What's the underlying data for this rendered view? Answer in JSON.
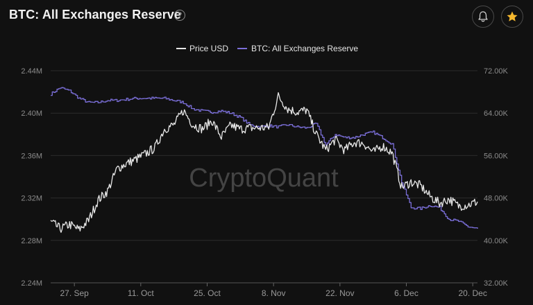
{
  "header": {
    "title": "BTC: All Exchanges Reserve",
    "help_glyph": "?",
    "icons": [
      "help-icon",
      "bell-icon",
      "star-icon"
    ]
  },
  "colors": {
    "background": "#111111",
    "price": "#e8e8e8",
    "reserve": "#7b6fd9",
    "star": "#f5b82e",
    "grid": "#2c2c2c",
    "watermark": "#555555"
  },
  "watermark": "CryptoQuant",
  "chart_data": {
    "type": "line",
    "legend_position": "top-center",
    "legend": [
      {
        "name": "Price USD",
        "color": "#e8e8e8"
      },
      {
        "name": "BTC: All Exchanges Reserve",
        "color": "#7b6fd9"
      }
    ],
    "x_range": [
      "2021-09-22",
      "2021-12-21"
    ],
    "x_ticks": [
      {
        "date": "2021-09-27",
        "label": "27. Sep"
      },
      {
        "date": "2021-10-11",
        "label": "11. Oct"
      },
      {
        "date": "2021-10-25",
        "label": "25. Oct"
      },
      {
        "date": "2021-11-08",
        "label": "8. Nov"
      },
      {
        "date": "2021-11-22",
        "label": "22. Nov"
      },
      {
        "date": "2021-12-06",
        "label": "6. Dec"
      },
      {
        "date": "2021-12-20",
        "label": "20. Dec"
      }
    ],
    "y_left": {
      "ylim": [
        2.24,
        2.44
      ],
      "ticks": [
        2.24,
        2.28,
        2.32,
        2.36,
        2.4,
        2.44
      ],
      "tick_labels": [
        "2.24M",
        "2.28M",
        "2.32M",
        "2.36M",
        "2.40M",
        "2.44M"
      ]
    },
    "y_right": {
      "ylim": [
        32000,
        72000
      ],
      "ticks": [
        32000,
        40000,
        48000,
        56000,
        64000,
        72000
      ],
      "tick_labels": [
        "32.00K",
        "40.00K",
        "48.00K",
        "56.00K",
        "64.00K",
        "72.00K"
      ]
    },
    "grid": true,
    "series": [
      {
        "name": "Price USD",
        "axis": "right",
        "x": [
          "2021-09-22",
          "2021-09-24",
          "2021-09-26",
          "2021-09-28",
          "2021-09-30",
          "2021-10-02",
          "2021-10-04",
          "2021-10-06",
          "2021-10-08",
          "2021-10-10",
          "2021-10-12",
          "2021-10-14",
          "2021-10-16",
          "2021-10-18",
          "2021-10-20",
          "2021-10-22",
          "2021-10-24",
          "2021-10-26",
          "2021-10-28",
          "2021-10-30",
          "2021-11-01",
          "2021-11-03",
          "2021-11-05",
          "2021-11-07",
          "2021-11-09",
          "2021-11-11",
          "2021-11-13",
          "2021-11-15",
          "2021-11-17",
          "2021-11-19",
          "2021-11-21",
          "2021-11-23",
          "2021-11-25",
          "2021-11-27",
          "2021-11-29",
          "2021-12-01",
          "2021-12-03",
          "2021-12-05",
          "2021-12-07",
          "2021-12-09",
          "2021-12-11",
          "2021-12-13",
          "2021-12-15",
          "2021-12-17",
          "2021-12-19",
          "2021-12-21"
        ],
        "values": [
          43500,
          42200,
          43000,
          42000,
          43800,
          47600,
          49300,
          53500,
          54500,
          55300,
          56300,
          57500,
          61000,
          61800,
          64500,
          61800,
          61000,
          62600,
          59500,
          61700,
          61000,
          61200,
          61200,
          61300,
          67200,
          64800,
          64200,
          64600,
          60000,
          57000,
          59000,
          57000,
          58500,
          58300,
          56600,
          57800,
          56500,
          50000,
          51000,
          50300,
          48300,
          47000,
          47800,
          46500,
          46700,
          47300
        ]
      },
      {
        "name": "BTC: All Exchanges Reserve",
        "axis": "left",
        "x": [
          "2021-09-22",
          "2021-09-24",
          "2021-09-26",
          "2021-09-28",
          "2021-09-30",
          "2021-10-02",
          "2021-10-04",
          "2021-10-06",
          "2021-10-08",
          "2021-10-10",
          "2021-10-12",
          "2021-10-14",
          "2021-10-16",
          "2021-10-18",
          "2021-10-20",
          "2021-10-22",
          "2021-10-24",
          "2021-10-26",
          "2021-10-28",
          "2021-10-30",
          "2021-11-01",
          "2021-11-03",
          "2021-11-05",
          "2021-11-07",
          "2021-11-09",
          "2021-11-11",
          "2021-11-13",
          "2021-11-15",
          "2021-11-17",
          "2021-11-19",
          "2021-11-21",
          "2021-11-23",
          "2021-11-25",
          "2021-11-27",
          "2021-11-29",
          "2021-12-01",
          "2021-12-03",
          "2021-12-05",
          "2021-12-07",
          "2021-12-09",
          "2021-12-11",
          "2021-12-13",
          "2021-12-15",
          "2021-12-17",
          "2021-12-19",
          "2021-12-21"
        ],
        "values": [
          2.418,
          2.424,
          2.421,
          2.414,
          2.41,
          2.41,
          2.412,
          2.412,
          2.413,
          2.414,
          2.414,
          2.414,
          2.414,
          2.412,
          2.41,
          2.404,
          2.402,
          2.401,
          2.402,
          2.4,
          2.396,
          2.389,
          2.387,
          2.388,
          2.387,
          2.389,
          2.387,
          2.386,
          2.39,
          2.37,
          2.38,
          2.377,
          2.377,
          2.38,
          2.382,
          2.377,
          2.371,
          2.335,
          2.311,
          2.31,
          2.313,
          2.311,
          2.3,
          2.298,
          2.293,
          2.291
        ]
      }
    ]
  }
}
